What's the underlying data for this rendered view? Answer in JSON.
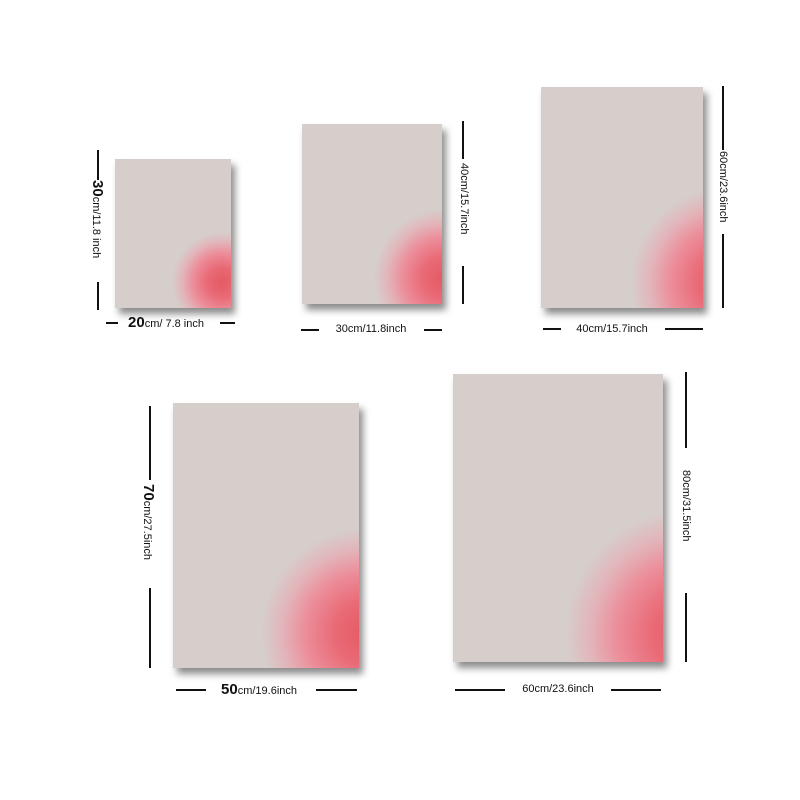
{
  "sizes": [
    {
      "width": {
        "num": "20",
        "unit": "cm/ 7.8 inch"
      },
      "height": {
        "num": "30",
        "unit": "cm/11.8 inch"
      }
    },
    {
      "width": {
        "num": "30cm/11.8inch"
      },
      "height": {
        "num": "40cm/15.7inch"
      }
    },
    {
      "width": {
        "num": "40cm/15.7inch"
      },
      "height": {
        "num": "60cm/23.6inch"
      }
    },
    {
      "width": {
        "num": "50",
        "unit": "cm/19.6inch"
      },
      "height": {
        "num": "70",
        "unit": "cm/27.5inch"
      }
    },
    {
      "width": {
        "num": "60cm/23.6inch"
      },
      "height": {
        "num": "80cm/31.5inch"
      }
    }
  ],
  "colors": {
    "canvas_background": "#d6cecb",
    "gradient_center": "#e45a62",
    "gradient_mid": "#ec8d9a"
  }
}
